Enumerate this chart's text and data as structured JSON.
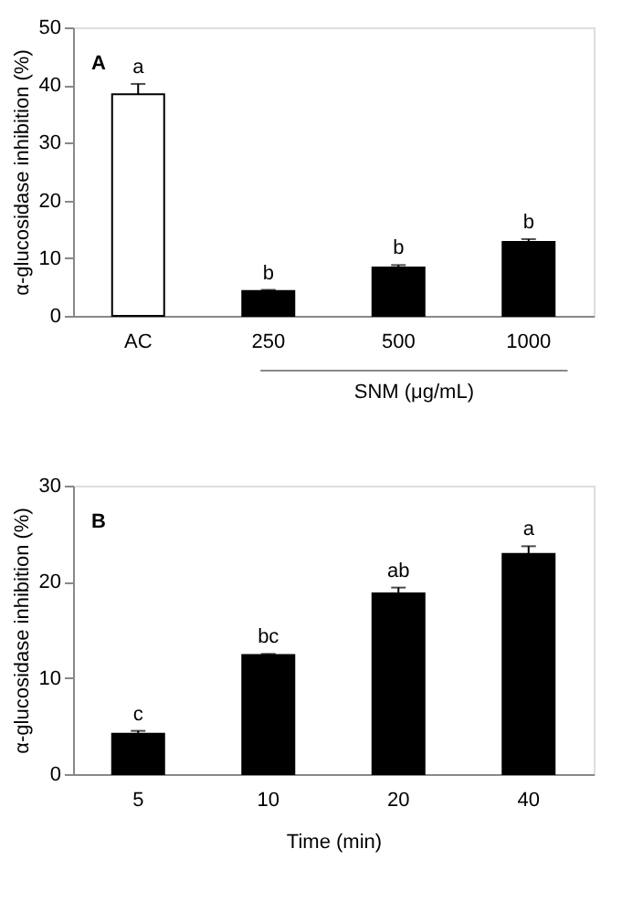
{
  "chart_data": [
    {
      "type": "bar",
      "categories": [
        "AC",
        "250",
        "500",
        "1000"
      ],
      "values": [
        38.4,
        4.3,
        8.4,
        12.8
      ],
      "colors": [
        "#ffffff",
        "#000000",
        "#000000",
        "#000000"
      ],
      "errors": [
        [
          38.4,
          40.2
        ],
        [
          4.3,
          4.5
        ],
        [
          8.4,
          8.8
        ],
        [
          12.8,
          13.3
        ]
      ],
      "ylabel": "α-glucosidase inhibition  (%)",
      "xlabel": "SNM (μg/mL)",
      "ylim": [
        0,
        50
      ],
      "yticks": [
        0,
        10,
        20,
        30,
        40,
        50
      ],
      "grid": false,
      "annotations": [
        "A",
        {
          "text": "a",
          "x": "AC",
          "y": 40.2
        },
        {
          "text": "b",
          "x": "250",
          "y": 4.5
        },
        {
          "text": "b",
          "x": "500",
          "y": 8.8
        },
        {
          "text": "b",
          "x": "1000",
          "y": 13.3
        }
      ]
    },
    {
      "type": "bar",
      "categories": [
        "5",
        "10",
        "20",
        "40"
      ],
      "values": [
        4.2,
        12.4,
        18.8,
        22.9
      ],
      "colors": [
        "#000000",
        "#000000",
        "#000000",
        "#000000"
      ],
      "errors": [
        [
          4.2,
          4.5
        ],
        [
          12.4,
          12.5
        ],
        [
          18.8,
          19.4
        ],
        [
          22.9,
          23.7
        ]
      ],
      "ylabel": "α-glucosidase inhibition  (%)",
      "xlabel": "Time  (min)",
      "ylim": [
        0,
        30
      ],
      "yticks": [
        0,
        10,
        20,
        30
      ],
      "grid": false,
      "annotations": [
        "B",
        {
          "text": "c",
          "x": "5",
          "y": 4.5
        },
        {
          "text": "bc",
          "x": "10",
          "y": 12.5
        },
        {
          "text": "ab",
          "x": "20",
          "y": 19.4
        },
        {
          "text": "a",
          "x": "40",
          "y": 23.7
        }
      ]
    }
  ]
}
